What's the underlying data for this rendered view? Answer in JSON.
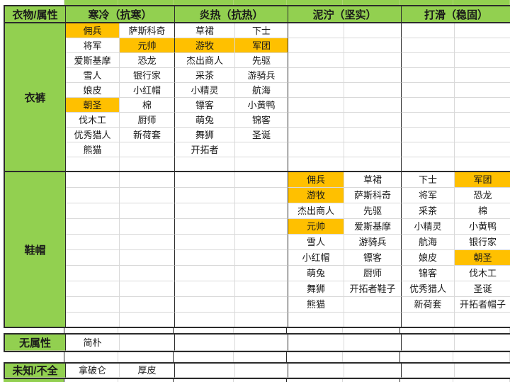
{
  "table": {
    "corner_header": "衣物/属性",
    "column_groups": [
      {
        "label": "寒冷（抗寒）"
      },
      {
        "label": "炎热（抗热）"
      },
      {
        "label": "泥泞（坚实）"
      },
      {
        "label": "打滑（稳固）"
      }
    ],
    "sections": [
      {
        "label": "衣裤",
        "rows": [
          [
            "佣兵",
            "萨斯科奇",
            "草裙",
            "下士",
            "",
            "",
            "",
            ""
          ],
          [
            "将军",
            "元帅",
            "游牧",
            "军团",
            "",
            "",
            "",
            ""
          ],
          [
            "爱斯基摩",
            "恐龙",
            "杰出商人",
            "先驱",
            "",
            "",
            "",
            ""
          ],
          [
            "雪人",
            "银行家",
            "采茶",
            "游骑兵",
            "",
            "",
            "",
            ""
          ],
          [
            "娘皮",
            "小红帽",
            "小精灵",
            "航海",
            "",
            "",
            "",
            ""
          ],
          [
            "朝圣",
            "棉",
            "镖客",
            "小黄鸭",
            "",
            "",
            "",
            ""
          ],
          [
            "伐木工",
            "厨师",
            "萌兔",
            "锦客",
            "",
            "",
            "",
            ""
          ],
          [
            "优秀猎人",
            "新荷套",
            "舞狮",
            "圣诞",
            "",
            "",
            "",
            ""
          ],
          [
            "熊猫",
            "",
            "开拓者",
            "",
            "",
            "",
            "",
            ""
          ],
          [
            "",
            "",
            "",
            "",
            "",
            "",
            "",
            ""
          ]
        ],
        "highlights": [
          [
            0,
            0
          ],
          [
            1,
            1
          ],
          [
            1,
            2
          ],
          [
            1,
            3
          ],
          [
            5,
            0
          ]
        ]
      },
      {
        "label": "鞋帽",
        "rows": [
          [
            "",
            "",
            "",
            "",
            "佣兵",
            "草裙",
            "下士",
            "军团"
          ],
          [
            "",
            "",
            "",
            "",
            "游牧",
            "萨斯科奇",
            "将军",
            "恐龙"
          ],
          [
            "",
            "",
            "",
            "",
            "杰出商人",
            "先驱",
            "采茶",
            "棉"
          ],
          [
            "",
            "",
            "",
            "",
            "元帅",
            "爱斯基摩",
            "小精灵",
            "小黄鸭"
          ],
          [
            "",
            "",
            "",
            "",
            "雪人",
            "游骑兵",
            "航海",
            "银行家"
          ],
          [
            "",
            "",
            "",
            "",
            "小红帽",
            "镖客",
            "娘皮",
            "朝圣"
          ],
          [
            "",
            "",
            "",
            "",
            "萌兔",
            "厨师",
            "锦客",
            "伐木工"
          ],
          [
            "",
            "",
            "",
            "",
            "舞狮",
            "开拓者鞋子",
            "优秀猎人",
            "圣诞"
          ],
          [
            "",
            "",
            "",
            "",
            "熊猫",
            "",
            "新荷套",
            "开拓者帽子"
          ],
          [
            "",
            "",
            "",
            "",
            "",
            "",
            "",
            ""
          ]
        ],
        "highlights": [
          [
            0,
            4
          ],
          [
            1,
            4
          ],
          [
            3,
            4
          ],
          [
            0,
            7
          ],
          [
            5,
            7
          ]
        ]
      },
      {
        "label": "无属性",
        "rows": [
          [
            "简朴",
            "",
            "",
            "",
            "",
            "",
            "",
            ""
          ]
        ],
        "highlights": []
      },
      {
        "label": "未知/不全",
        "rows": [
          [
            "拿破仑",
            "厚皮",
            "",
            "",
            "",
            "",
            "",
            ""
          ]
        ],
        "highlights": []
      }
    ]
  },
  "colors": {
    "header_green": "#92d050",
    "highlight_orange": "#ffc000",
    "grid_line": "#d9d9d9",
    "section_border": "#2b2b2b"
  }
}
